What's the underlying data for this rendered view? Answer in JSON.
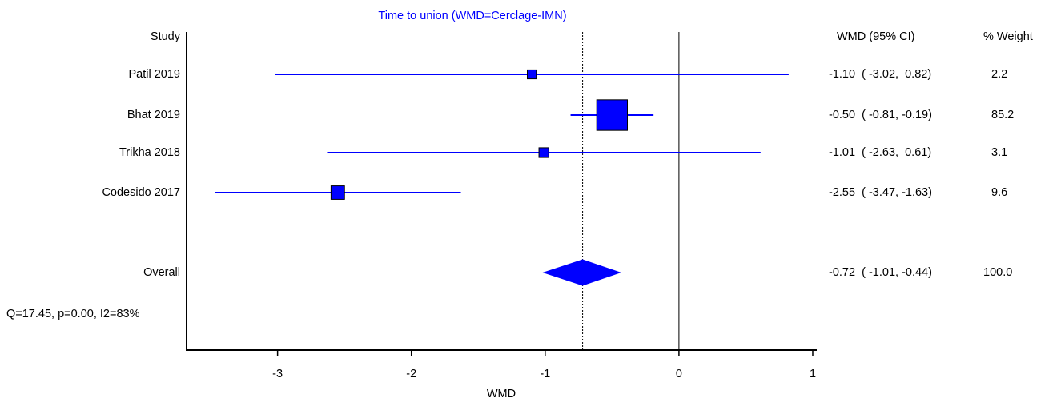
{
  "chart_data": {
    "type": "forest",
    "title": "Time to union (WMD=Cerclage-IMN)",
    "study_header": "Study",
    "ci_header": "WMD (95% CI)",
    "weight_header": "% Weight",
    "xlabel": "WMD",
    "heterogeneity": "Q=17.45, p=0.00, I2=83%",
    "color": "#0000ff",
    "categories": [
      "Patil 2019",
      "Bhat 2019",
      "Trikha 2018",
      "Codesido 2017"
    ],
    "values": [
      -1.1,
      -0.5,
      -1.01,
      -2.55
    ],
    "lower": [
      -3.02,
      -0.81,
      -2.63,
      -3.47
    ],
    "upper": [
      0.82,
      -0.19,
      0.61,
      -1.63
    ],
    "weights": [
      2.2,
      85.2,
      3.1,
      9.6
    ],
    "ci_labels": [
      "-1.10  ( -3.02,  0.82)",
      "-0.50  ( -0.81, -0.19)",
      "-1.01  ( -2.63,  0.61)",
      "-2.55  ( -3.47, -1.63)"
    ],
    "overall": {
      "label": "Overall",
      "value": -0.72,
      "lower": -1.01,
      "upper": -0.44,
      "ci_label": "-0.72  ( -1.01, -0.44)",
      "weight": {
        "value": 100,
        "label": "100.0"
      }
    },
    "null_line": 0,
    "xlim": [
      -3.68,
      1.03
    ],
    "xticks": [
      -3,
      -2,
      -1,
      0,
      1
    ]
  }
}
